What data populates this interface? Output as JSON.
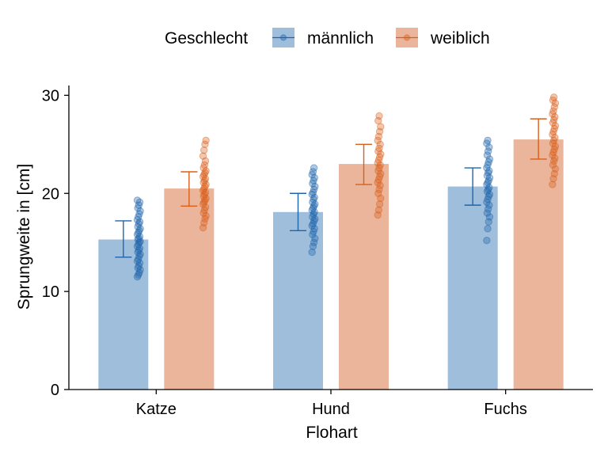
{
  "chart_data": {
    "type": "bar",
    "title": "",
    "xlabel": "Flohart",
    "ylabel": "Sprungweite in [cm]",
    "categories": [
      "Katze",
      "Hund",
      "Fuchs"
    ],
    "ylim": [
      0,
      31
    ],
    "yticks": [
      0,
      10,
      20,
      30
    ],
    "grid": false,
    "legend": {
      "title": "Geschlecht",
      "position": "top"
    },
    "series": [
      {
        "name": "männlich",
        "color": "#1f65ac",
        "bar_color": "#9fbedb",
        "values": [
          15.3,
          18.1,
          20.7
        ],
        "error": [
          [
            13.5,
            17.2
          ],
          [
            16.2,
            20.0
          ],
          [
            18.8,
            22.6
          ]
        ],
        "points": [
          [
            11.5,
            11.7,
            11.9,
            12.2,
            12.4,
            12.6,
            12.9,
            13.1,
            13.3,
            13.6,
            13.8,
            14.0,
            14.2,
            14.4,
            14.6,
            14.8,
            15.0,
            15.1,
            15.3,
            15.4,
            15.6,
            15.8,
            16.0,
            16.2,
            16.4,
            16.6,
            16.9,
            17.1,
            17.3,
            17.6,
            17.9,
            18.2,
            18.5,
            18.8,
            19.1,
            19.3
          ],
          [
            14.0,
            14.6,
            15.0,
            15.4,
            15.8,
            16.1,
            16.4,
            16.7,
            16.9,
            17.2,
            17.4,
            17.6,
            17.9,
            18.1,
            18.3,
            18.5,
            18.7,
            18.9,
            19.1,
            19.4,
            19.6,
            19.9,
            20.1,
            20.4,
            20.7,
            21.0,
            21.3,
            21.6,
            21.9,
            22.2,
            22.6
          ],
          [
            15.2,
            16.4,
            17.1,
            17.6,
            18.0,
            18.4,
            18.8,
            19.1,
            19.4,
            19.7,
            19.9,
            20.2,
            20.4,
            20.6,
            20.9,
            21.1,
            21.3,
            21.6,
            21.8,
            22.1,
            22.3,
            22.6,
            22.9,
            23.2,
            23.5,
            23.9,
            24.3,
            24.7,
            25.1,
            25.4
          ]
        ]
      },
      {
        "name": "weiblich",
        "color": "#d95f1a",
        "bar_color": "#eab59b",
        "values": [
          20.5,
          23.0,
          25.5
        ],
        "error": [
          [
            18.7,
            22.2
          ],
          [
            20.9,
            25.0
          ],
          [
            23.5,
            27.6
          ]
        ],
        "points": [
          [
            16.5,
            17.0,
            17.4,
            17.7,
            18.0,
            18.3,
            18.6,
            18.9,
            19.1,
            19.3,
            19.5,
            19.7,
            19.9,
            20.1,
            20.3,
            20.5,
            20.7,
            20.9,
            21.1,
            21.3,
            21.5,
            21.7,
            21.9,
            22.1,
            22.3,
            22.6,
            22.9,
            23.3,
            23.8,
            24.4,
            25.0,
            25.4
          ],
          [
            17.8,
            18.3,
            18.9,
            19.5,
            20.0,
            20.4,
            20.8,
            21.1,
            21.4,
            21.7,
            22.0,
            22.3,
            22.6,
            22.9,
            23.1,
            23.4,
            23.7,
            24.0,
            24.3,
            24.6,
            25.0,
            25.4,
            25.8,
            26.3,
            26.8,
            27.4,
            27.9
          ],
          [
            20.9,
            21.5,
            22.0,
            22.5,
            22.9,
            23.3,
            23.6,
            23.9,
            24.2,
            24.5,
            24.8,
            25.1,
            25.4,
            25.7,
            26.0,
            26.3,
            26.6,
            26.9,
            27.2,
            27.5,
            27.8,
            28.1,
            28.4,
            28.8,
            29.2,
            29.5,
            29.8
          ]
        ]
      }
    ]
  }
}
